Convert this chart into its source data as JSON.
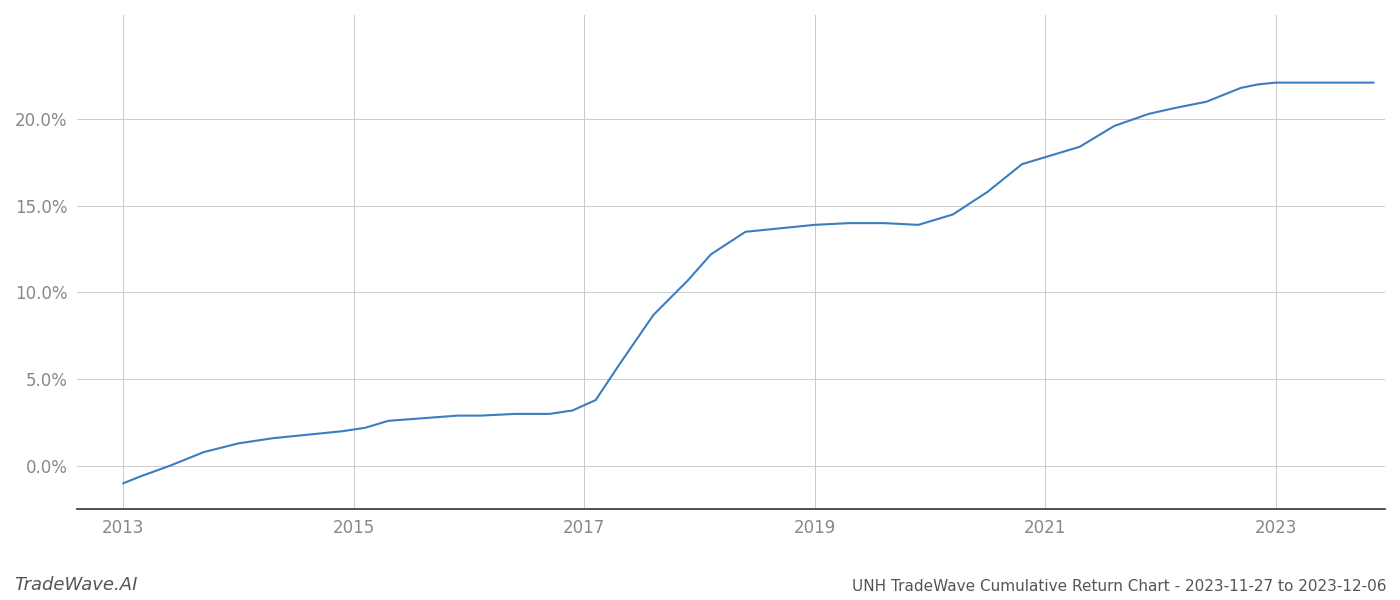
{
  "title": "UNH TradeWave Cumulative Return Chart - 2023-11-27 to 2023-12-06",
  "watermark": "TradeWave.AI",
  "line_color": "#3a7ebf",
  "line_width": 1.5,
  "background_color": "#ffffff",
  "grid_color": "#cccccc",
  "x_years": [
    2013,
    2015,
    2017,
    2019,
    2021,
    2023
  ],
  "data_x": [
    2013.0,
    2013.15,
    2013.4,
    2013.7,
    2014.0,
    2014.3,
    2014.6,
    2014.9,
    2015.1,
    2015.3,
    2015.5,
    2015.7,
    2015.9,
    2016.1,
    2016.4,
    2016.7,
    2016.9,
    2017.1,
    2017.3,
    2017.6,
    2017.9,
    2018.1,
    2018.4,
    2018.7,
    2019.0,
    2019.3,
    2019.6,
    2019.9,
    2020.2,
    2020.5,
    2020.8,
    2021.0,
    2021.3,
    2021.6,
    2021.9,
    2022.1,
    2022.4,
    2022.7,
    2022.85,
    2023.0,
    2023.5,
    2023.85
  ],
  "data_y": [
    -0.01,
    -0.006,
    0.0,
    0.008,
    0.013,
    0.016,
    0.018,
    0.02,
    0.022,
    0.026,
    0.027,
    0.028,
    0.029,
    0.029,
    0.03,
    0.03,
    0.032,
    0.038,
    0.058,
    0.087,
    0.107,
    0.122,
    0.135,
    0.137,
    0.139,
    0.14,
    0.14,
    0.139,
    0.145,
    0.158,
    0.174,
    0.178,
    0.184,
    0.196,
    0.203,
    0.206,
    0.21,
    0.218,
    0.22,
    0.221,
    0.221,
    0.221
  ],
  "ylim": [
    -0.025,
    0.26
  ],
  "yticks": [
    0.0,
    0.05,
    0.1,
    0.15,
    0.2
  ],
  "xlim": [
    2012.6,
    2023.95
  ],
  "tick_fontsize": 12,
  "footer_fontsize": 11,
  "watermark_fontsize": 13
}
